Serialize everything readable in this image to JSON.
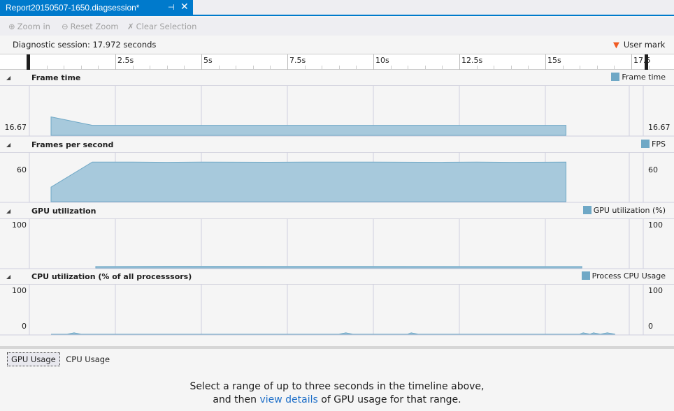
{
  "tab": {
    "title": "Report20150507-1650.diagsession*",
    "pin_icon": "pin-icon",
    "close_icon": "close-icon"
  },
  "toolbar": {
    "zoom_in": "Zoom in",
    "reset_zoom": "Reset Zoom",
    "clear_selection": "Clear Selection"
  },
  "session": {
    "label": "Diagnostic session: 17.972 seconds",
    "user_mark": "User mark"
  },
  "ruler": {
    "ticks": [
      "2.5s",
      "5s",
      "7.5s",
      "10s",
      "12.5s",
      "15s",
      "17.5"
    ]
  },
  "colors": {
    "accent": "#007acc",
    "series": "#6fa8c6",
    "fill": "#a7c9dc",
    "user_mark": "#f05a22"
  },
  "charts": [
    {
      "title": "Frame time",
      "legend": "Frame time",
      "left_label": "16.67",
      "right_label": "16.67",
      "ylim": [
        12,
        35
      ],
      "points": [
        [
          0.63,
          20.6
        ],
        [
          1.83,
          16.67
        ],
        [
          15.6,
          16.67
        ]
      ]
    },
    {
      "title": "Frames per second",
      "legend": "FPS",
      "left_label": "60",
      "right_label": "60",
      "ylim": [
        0,
        75
      ],
      "points": [
        [
          0.63,
          22
        ],
        [
          1.83,
          60
        ],
        [
          3,
          60
        ],
        [
          4,
          59.5
        ],
        [
          5,
          60
        ],
        [
          7,
          59.7
        ],
        [
          8,
          60
        ],
        [
          10,
          60
        ],
        [
          12,
          59.6
        ],
        [
          13,
          60
        ],
        [
          14,
          59.5
        ],
        [
          15.6,
          60
        ]
      ]
    },
    {
      "title": "GPU utilization",
      "legend": "GPU utilization (%)",
      "left_label": "100",
      "right_label": "100",
      "ylim": [
        0,
        100
      ],
      "points": [
        [
          1.93,
          3
        ],
        [
          4,
          3.5
        ],
        [
          16.06,
          3
        ]
      ]
    },
    {
      "title": "CPU utilization (% of all processsors)",
      "legend": "Process CPU Usage",
      "left_label": "100",
      "right_label": "100",
      "left_label_2": "0",
      "right_label_2": "0",
      "ylim": [
        0,
        100
      ],
      "points": [
        [
          0.63,
          0
        ],
        [
          1.1,
          0
        ],
        [
          1.3,
          3
        ],
        [
          1.5,
          0
        ],
        [
          9,
          0
        ],
        [
          9.2,
          3
        ],
        [
          9.4,
          0
        ],
        [
          11,
          0
        ],
        [
          11.1,
          3
        ],
        [
          11.3,
          0
        ],
        [
          16,
          0
        ],
        [
          16.1,
          3
        ],
        [
          16.3,
          0
        ],
        [
          16.4,
          3
        ],
        [
          16.6,
          0
        ],
        [
          16.8,
          3
        ],
        [
          17.03,
          0
        ]
      ]
    }
  ],
  "bottom": {
    "tabs": [
      "GPU Usage",
      "CPU Usage"
    ],
    "message_1": "Select a range of up to three seconds in the timeline above,",
    "message_2a": "and then ",
    "message_link": "view details",
    "message_2b": " of GPU usage for that range."
  }
}
